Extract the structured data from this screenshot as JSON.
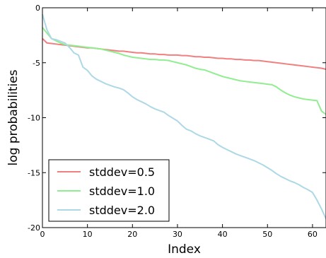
{
  "chart_data": {
    "type": "line",
    "title": "",
    "xlabel": "Index",
    "ylabel": "log probabilities",
    "xlim": [
      0,
      63
    ],
    "ylim": [
      -20,
      0
    ],
    "xticks": [
      0,
      10,
      20,
      30,
      40,
      50,
      60
    ],
    "yticks": [
      0,
      -5,
      -10,
      -15,
      -20
    ],
    "grid": false,
    "legend_position": "lower-left",
    "series": [
      {
        "name": "stddev=0.5",
        "color": "#f08080",
        "x": [
          0,
          1,
          2,
          3,
          4,
          5,
          6,
          7,
          8,
          9,
          10,
          11,
          12,
          13,
          14,
          15,
          16,
          17,
          18,
          19,
          20,
          21,
          22,
          23,
          24,
          25,
          26,
          27,
          28,
          29,
          30,
          31,
          32,
          33,
          34,
          35,
          36,
          37,
          38,
          39,
          40,
          41,
          42,
          43,
          44,
          45,
          46,
          47,
          48,
          49,
          50,
          51,
          52,
          53,
          54,
          55,
          56,
          57,
          58,
          59,
          60,
          61,
          62,
          63
        ],
        "y": [
          -2.8,
          -3.2,
          -3.25,
          -3.3,
          -3.35,
          -3.4,
          -3.45,
          -3.5,
          -3.55,
          -3.6,
          -3.65,
          -3.65,
          -3.7,
          -3.75,
          -3.8,
          -3.85,
          -3.9,
          -3.95,
          -3.95,
          -4.0,
          -4.05,
          -4.1,
          -4.1,
          -4.15,
          -4.2,
          -4.2,
          -4.25,
          -4.25,
          -4.3,
          -4.3,
          -4.3,
          -4.35,
          -4.35,
          -4.4,
          -4.45,
          -4.45,
          -4.5,
          -4.5,
          -4.55,
          -4.6,
          -4.6,
          -4.65,
          -4.65,
          -4.7,
          -4.7,
          -4.75,
          -4.75,
          -4.8,
          -4.8,
          -4.85,
          -4.9,
          -4.95,
          -5.0,
          -5.05,
          -5.1,
          -5.15,
          -5.2,
          -5.25,
          -5.3,
          -5.35,
          -5.4,
          -5.45,
          -5.5,
          -5.6
        ]
      },
      {
        "name": "stddev=1.0",
        "color": "#90ee90",
        "x": [
          0,
          1,
          2,
          3,
          4,
          5,
          6,
          7,
          8,
          9,
          10,
          11,
          12,
          13,
          14,
          15,
          16,
          17,
          18,
          19,
          20,
          21,
          22,
          23,
          24,
          25,
          26,
          27,
          28,
          29,
          30,
          31,
          32,
          33,
          34,
          35,
          36,
          37,
          38,
          39,
          40,
          41,
          42,
          43,
          44,
          45,
          46,
          47,
          48,
          49,
          50,
          51,
          52,
          53,
          54,
          55,
          56,
          57,
          58,
          59,
          60,
          61,
          62,
          63
        ],
        "y": [
          -1.8,
          -2.3,
          -2.8,
          -3.0,
          -3.2,
          -3.35,
          -3.4,
          -3.45,
          -3.5,
          -3.55,
          -3.6,
          -3.65,
          -3.7,
          -3.75,
          -3.85,
          -3.95,
          -4.05,
          -4.15,
          -4.3,
          -4.4,
          -4.5,
          -4.55,
          -4.6,
          -4.65,
          -4.7,
          -4.7,
          -4.75,
          -4.75,
          -4.8,
          -4.9,
          -5.0,
          -5.1,
          -5.2,
          -5.35,
          -5.5,
          -5.6,
          -5.65,
          -5.8,
          -5.95,
          -6.1,
          -6.25,
          -6.35,
          -6.45,
          -6.55,
          -6.65,
          -6.7,
          -6.75,
          -6.8,
          -6.85,
          -6.9,
          -6.95,
          -7.0,
          -7.2,
          -7.5,
          -7.75,
          -7.95,
          -8.1,
          -8.2,
          -8.3,
          -8.35,
          -8.4,
          -8.45,
          -9.4,
          -9.7
        ]
      },
      {
        "name": "stddev=2.0",
        "color": "#add8e6",
        "x": [
          0,
          1,
          2,
          3,
          4,
          5,
          6,
          7,
          8,
          9,
          10,
          11,
          12,
          13,
          14,
          15,
          16,
          17,
          18,
          19,
          20,
          21,
          22,
          23,
          24,
          25,
          26,
          27,
          28,
          29,
          30,
          31,
          32,
          33,
          34,
          35,
          36,
          37,
          38,
          39,
          40,
          41,
          42,
          43,
          44,
          45,
          46,
          47,
          48,
          49,
          50,
          51,
          52,
          53,
          54,
          55,
          56,
          57,
          58,
          59,
          60,
          61,
          62,
          63
        ],
        "y": [
          -0.6,
          -2.0,
          -2.8,
          -2.9,
          -3.05,
          -3.2,
          -3.6,
          -4.1,
          -4.3,
          -5.4,
          -5.7,
          -6.2,
          -6.5,
          -6.7,
          -6.9,
          -7.05,
          -7.2,
          -7.3,
          -7.45,
          -7.75,
          -8.1,
          -8.35,
          -8.55,
          -8.75,
          -9.0,
          -9.2,
          -9.35,
          -9.5,
          -9.8,
          -10.05,
          -10.3,
          -10.7,
          -11.05,
          -11.2,
          -11.45,
          -11.65,
          -11.8,
          -11.95,
          -12.1,
          -12.45,
          -12.7,
          -12.9,
          -13.1,
          -13.3,
          -13.45,
          -13.6,
          -13.75,
          -13.9,
          -14.1,
          -14.3,
          -14.55,
          -14.8,
          -15.1,
          -15.35,
          -15.55,
          -15.75,
          -15.9,
          -16.1,
          -16.35,
          -16.55,
          -16.8,
          -17.5,
          -18.3,
          -19.2
        ]
      }
    ]
  }
}
